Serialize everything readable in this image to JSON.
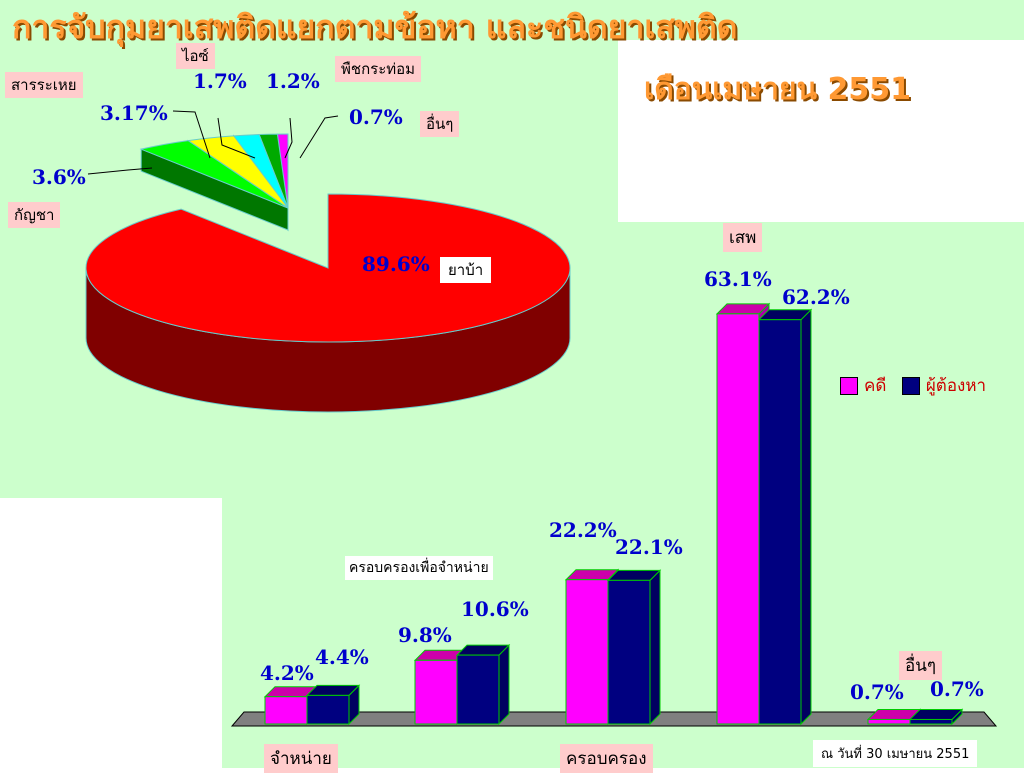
{
  "title": "การจับกุมยาเสพติดแยกตามข้อหา และชนิดยาเสพติด",
  "subtitle": "เดือนเมษายน 2551",
  "footnote": "ณ วันที่ 30 เมษายน 2551",
  "colors": {
    "red": "#ff0000",
    "green": "#00dd00",
    "yellow": "#ffff00",
    "cyan": "#00ffff",
    "darkgreen": "#008800",
    "magenta": "#ff00ff",
    "navy": "#000080"
  },
  "chart_data": [
    {
      "type": "pie",
      "slices": [
        {
          "label": "ยาบ้า",
          "value": 89.6,
          "value_label": "89.6%",
          "color": "#ff0000"
        },
        {
          "label": "กัญชา",
          "value": 3.6,
          "value_label": "3.6%",
          "color": "#00ff00"
        },
        {
          "label": "สารระเหย",
          "value": 3.17,
          "value_label": "3.17%",
          "color": "#ffff00"
        },
        {
          "label": "ไอซ์",
          "value": 1.7,
          "value_label": "1.7%",
          "color": "#00ffff"
        },
        {
          "label": "พืชกระท่อม",
          "value": 1.2,
          "value_label": "1.2%",
          "color": "#00aa00"
        },
        {
          "label": "อื่นๆ",
          "value": 0.7,
          "value_label": "0.7%",
          "color": "#ff00ff"
        }
      ]
    },
    {
      "type": "bar",
      "categories": [
        "จำหน่าย",
        "ครอบครองเพื่อจำหน่าย",
        "ครอบครอง",
        "เสพ",
        "อื่นๆ"
      ],
      "series": [
        {
          "name": "คดี",
          "color": "#ff00ff",
          "values": [
            4.2,
            9.8,
            22.2,
            63.1,
            0.7
          ],
          "labels": [
            "4.2%",
            "9.8%",
            "22.2%",
            "63.1%",
            "0.7%"
          ]
        },
        {
          "name": "ผู้ต้องหา",
          "color": "#000080",
          "values": [
            4.4,
            10.6,
            22.1,
            62.2,
            0.7
          ],
          "labels": [
            "4.4%",
            "10.6%",
            "22.1%",
            "62.2%",
            "0.7%"
          ]
        }
      ],
      "legend": "right"
    }
  ]
}
